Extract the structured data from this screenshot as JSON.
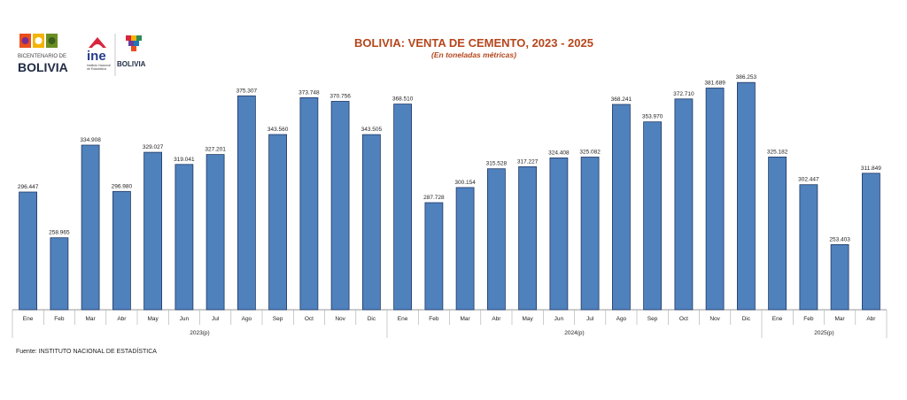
{
  "header": {
    "title": "BOLIVIA: VENTA DE CEMENTO, 2023 - 2025",
    "subtitle": "(En toneladas métricas)"
  },
  "logos": {
    "bicentenario_small": "BICENTENARIO DE",
    "bicentenario_big": "BOLIVIA",
    "ine": "ine",
    "ine_caption": "Instituto Nacional de Estadística",
    "bolivia_seal": "BOLIVIA"
  },
  "footer": {
    "source": "Fuente: INSTITUTO NACIONAL DE ESTADÍSTICA"
  },
  "colors": {
    "bar": "#4f81bd",
    "bar_border": "#1f3864",
    "title": "#b5461c"
  },
  "chart_data": {
    "type": "bar",
    "title": "BOLIVIA: VENTA DE CEMENTO, 2023 - 2025",
    "subtitle": "(En toneladas métricas)",
    "categories": [
      "Ene",
      "Feb",
      "Mar",
      "Abr",
      "May",
      "Jun",
      "Jul",
      "Ago",
      "Sep",
      "Oct",
      "Nov",
      "Dic",
      "Ene",
      "Feb",
      "Mar",
      "Abr",
      "May",
      "Jun",
      "Jul",
      "Ago",
      "Sep",
      "Oct",
      "Nov",
      "Dic",
      "Ene",
      "Feb",
      "Mar",
      "Abr"
    ],
    "groups": [
      {
        "label": "2023(p)",
        "count": 12
      },
      {
        "label": "2024(p)",
        "count": 12
      },
      {
        "label": "2025(p)",
        "count": 4
      }
    ],
    "values": [
      296447,
      258965,
      334908,
      296980,
      329027,
      319041,
      327201,
      375307,
      343560,
      373748,
      370756,
      343505,
      368510,
      287728,
      300154,
      315528,
      317227,
      324408,
      325082,
      368241,
      353970,
      372710,
      381689,
      386253,
      325182,
      302447,
      253403,
      311849
    ],
    "value_labels": [
      "296.447",
      "258.965",
      "334.908",
      "296.980",
      "329.027",
      "319.041",
      "327.201",
      "375.307",
      "343.560",
      "373.748",
      "370.756",
      "343.505",
      "368.510",
      "287.728",
      "300.154",
      "315.528",
      "317.227",
      "324.408",
      "325.082",
      "368.241",
      "353.970",
      "372.710",
      "381.689",
      "386.253",
      "325.182",
      "302.447",
      "253.403",
      "311.849"
    ],
    "ylim": [
      200000,
      390000
    ],
    "grid": false,
    "legend": "none"
  }
}
